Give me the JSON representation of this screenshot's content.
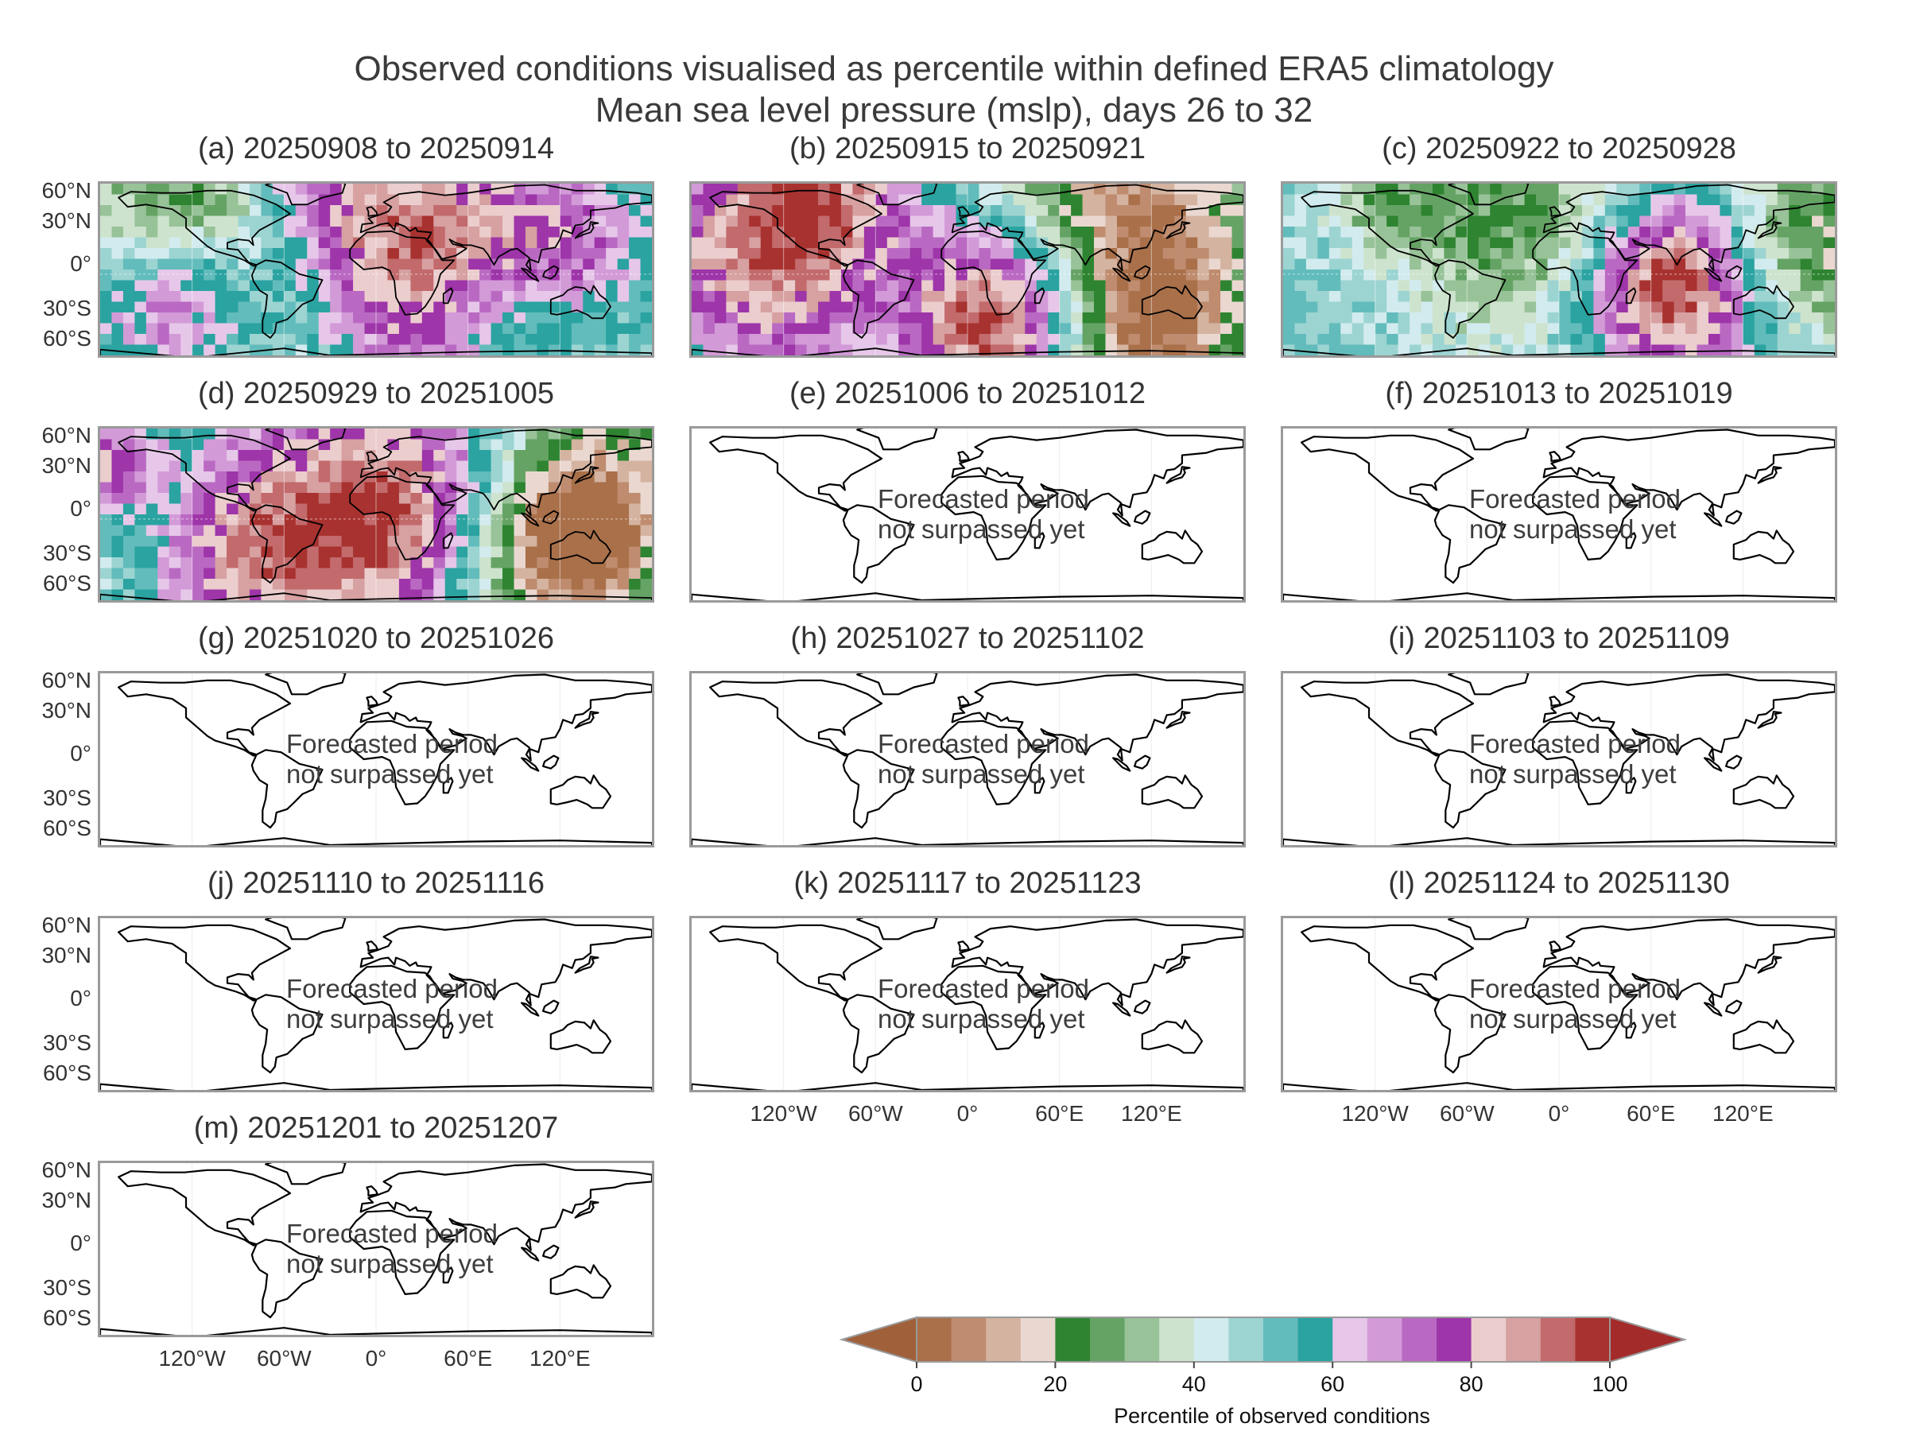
{
  "figure": {
    "title_line1": "Observed conditions visualised as percentile within defined ERA5 climatology",
    "title_line2": "Mean sea level pressure (mslp), days 26 to 32"
  },
  "chart_data": {
    "type": "heatmap",
    "title": "Observed conditions visualised as percentile within defined ERA5 climatology — Mean sea level pressure (mslp), days 26 to 32",
    "panels": [
      {
        "label": "(a) 20250908 to 20250914",
        "status": "observed"
      },
      {
        "label": "(b) 20250915 to 20250921",
        "status": "observed"
      },
      {
        "label": "(c) 20250922 to 20250928",
        "status": "observed"
      },
      {
        "label": "(d) 20250929 to 20251005",
        "status": "observed"
      },
      {
        "label": "(e) 20251006 to 20251012",
        "status": "forecast"
      },
      {
        "label": "(f) 20251013 to 20251019",
        "status": "forecast"
      },
      {
        "label": "(g) 20251020 to 20251026",
        "status": "forecast"
      },
      {
        "label": "(h) 20251027 to 20251102",
        "status": "forecast"
      },
      {
        "label": "(i) 20251103 to 20251109",
        "status": "forecast"
      },
      {
        "label": "(j) 20251110 to 20251116",
        "status": "forecast"
      },
      {
        "label": "(k) 20251117 to 20251123",
        "status": "forecast"
      },
      {
        "label": "(l) 20251124 to 20251130",
        "status": "forecast"
      },
      {
        "label": "(m) 20251201 to 20251207",
        "status": "forecast"
      }
    ],
    "forecast_text_line1": "Forecasted period",
    "forecast_text_line2": "not surpassed yet",
    "y_tick_labels": [
      "60°N",
      "30°N",
      "0°",
      "30°S",
      "60°S"
    ],
    "x_tick_labels": [
      "120°W",
      "60°W",
      "0°",
      "60°E",
      "120°E"
    ],
    "colorbar": {
      "label": "Percentile of observed conditions",
      "range": [
        0,
        100
      ],
      "ticks": [
        0,
        20,
        40,
        60,
        80,
        100
      ],
      "tick_labels": [
        "0",
        "20",
        "40",
        "60",
        "80",
        "100"
      ],
      "extend": "both",
      "colors": [
        "#a9704a",
        "#bf8c6f",
        "#d4b3a0",
        "#ead8d0",
        "#2e8431",
        "#65a365",
        "#98c298",
        "#cde3cd",
        "#d2ebee",
        "#9cd4d2",
        "#62bcbb",
        "#2aa3a1",
        "#e6c7e9",
        "#d39ad8",
        "#ba69c3",
        "#9e35a9",
        "#ebcdcd",
        "#d7a0a1",
        "#c26a6c",
        "#a8322f"
      ],
      "under_color": "#a0603a",
      "over_color": "#a32c2a"
    }
  }
}
